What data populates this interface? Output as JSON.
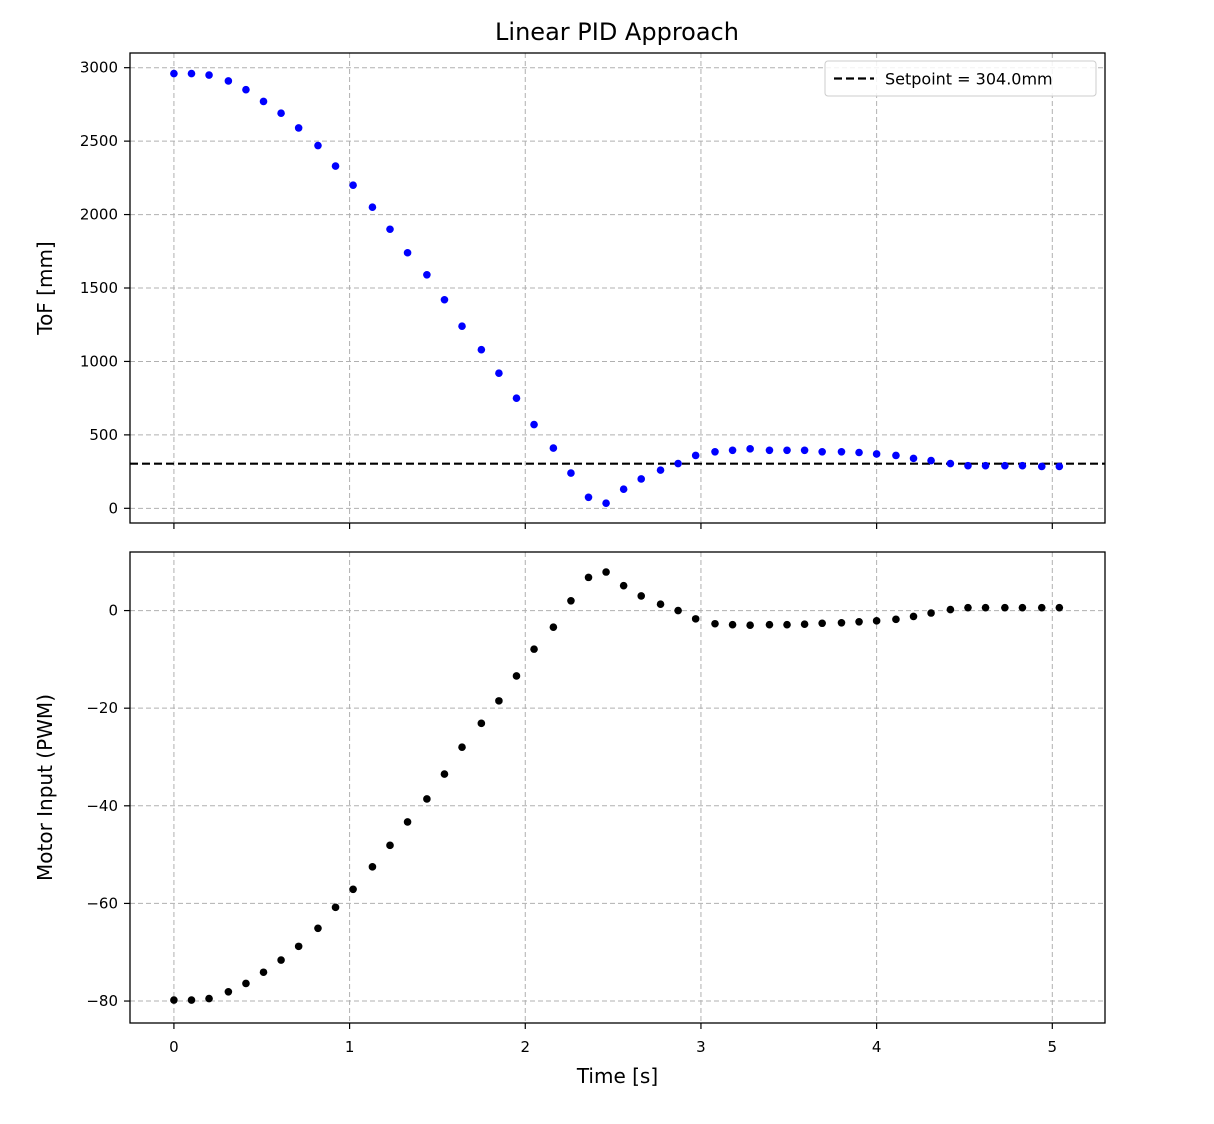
{
  "chart_data": [
    {
      "type": "scatter",
      "title": "Linear PID Approach",
      "xlabel": "",
      "ylabel": "ToF [mm]",
      "xlim": [
        -0.25,
        5.3
      ],
      "ylim": [
        -100,
        3100
      ],
      "xticks": [
        0,
        1,
        2,
        3,
        4,
        5
      ],
      "yticks": [
        0,
        500,
        1000,
        1500,
        2000,
        2500,
        3000
      ],
      "xtick_labels": [
        "0",
        "1",
        "2",
        "3",
        "4",
        "5"
      ],
      "ytick_labels": [
        "0",
        "500",
        "1000",
        "1500",
        "2000",
        "2500",
        "3000"
      ],
      "grid": true,
      "point_color": "#0000ff",
      "ylabel_color": "#0000ff",
      "setpoint": 304.0,
      "legend": {
        "position": "top-right",
        "entries": [
          "Setpoint = 304.0mm"
        ]
      },
      "x": [
        0.0,
        0.1,
        0.2,
        0.31,
        0.41,
        0.51,
        0.61,
        0.71,
        0.82,
        0.92,
        1.02,
        1.13,
        1.23,
        1.33,
        1.44,
        1.54,
        1.64,
        1.75,
        1.85,
        1.95,
        2.05,
        2.16,
        2.26,
        2.36,
        2.46,
        2.56,
        2.66,
        2.77,
        2.87,
        2.97,
        3.08,
        3.18,
        3.28,
        3.39,
        3.49,
        3.59,
        3.69,
        3.8,
        3.9,
        4.0,
        4.11,
        4.21,
        4.31,
        4.42,
        4.52,
        4.62,
        4.73,
        4.83,
        4.94,
        5.04
      ],
      "y": [
        2960,
        2960,
        2950,
        2910,
        2850,
        2770,
        2690,
        2590,
        2470,
        2330,
        2200,
        2050,
        1900,
        1740,
        1590,
        1420,
        1240,
        1080,
        920,
        750,
        570,
        410,
        240,
        75,
        35,
        130,
        200,
        260,
        305,
        360,
        385,
        395,
        405,
        395,
        395,
        395,
        385,
        385,
        380,
        370,
        360,
        340,
        325,
        305,
        290,
        290,
        290,
        290,
        285,
        285
      ]
    },
    {
      "type": "scatter",
      "title": "",
      "xlabel": "Time [s]",
      "ylabel": "Motor Input (PWM)",
      "xlim": [
        -0.25,
        5.3
      ],
      "ylim": [
        -84.5,
        12
      ],
      "xticks": [
        0,
        1,
        2,
        3,
        4,
        5
      ],
      "yticks": [
        -80,
        -60,
        -40,
        -20,
        0
      ],
      "xtick_labels": [
        "0",
        "1",
        "2",
        "3",
        "4",
        "5"
      ],
      "ytick_labels": [
        "−80",
        "−60",
        "−40",
        "−20",
        "0"
      ],
      "grid": true,
      "point_color": "#000000",
      "x": [
        0.0,
        0.1,
        0.2,
        0.31,
        0.41,
        0.51,
        0.61,
        0.71,
        0.82,
        0.92,
        1.02,
        1.13,
        1.23,
        1.33,
        1.44,
        1.54,
        1.64,
        1.75,
        1.85,
        1.95,
        2.05,
        2.16,
        2.26,
        2.36,
        2.46,
        2.56,
        2.66,
        2.77,
        2.87,
        2.97,
        3.08,
        3.18,
        3.28,
        3.39,
        3.49,
        3.59,
        3.69,
        3.8,
        3.9,
        4.0,
        4.11,
        4.21,
        4.31,
        4.42,
        4.52,
        4.62,
        4.73,
        4.83,
        4.94,
        5.04
      ],
      "y": [
        -79.8,
        -79.8,
        -79.5,
        -78.1,
        -76.4,
        -74.1,
        -71.6,
        -68.8,
        -65.1,
        -60.8,
        -57.1,
        -52.5,
        -48.1,
        -43.3,
        -38.6,
        -33.5,
        -28,
        -23.1,
        -18.5,
        -13.4,
        -7.9,
        -3.4,
        2,
        6.8,
        7.9,
        5.1,
        3,
        1.3,
        0,
        -1.7,
        -2.7,
        -2.9,
        -3,
        -2.9,
        -2.9,
        -2.8,
        -2.6,
        -2.5,
        -2.3,
        -2.1,
        -1.8,
        -1.2,
        -0.5,
        0.2,
        0.6,
        0.6,
        0.6,
        0.6,
        0.6,
        0.6
      ]
    }
  ]
}
